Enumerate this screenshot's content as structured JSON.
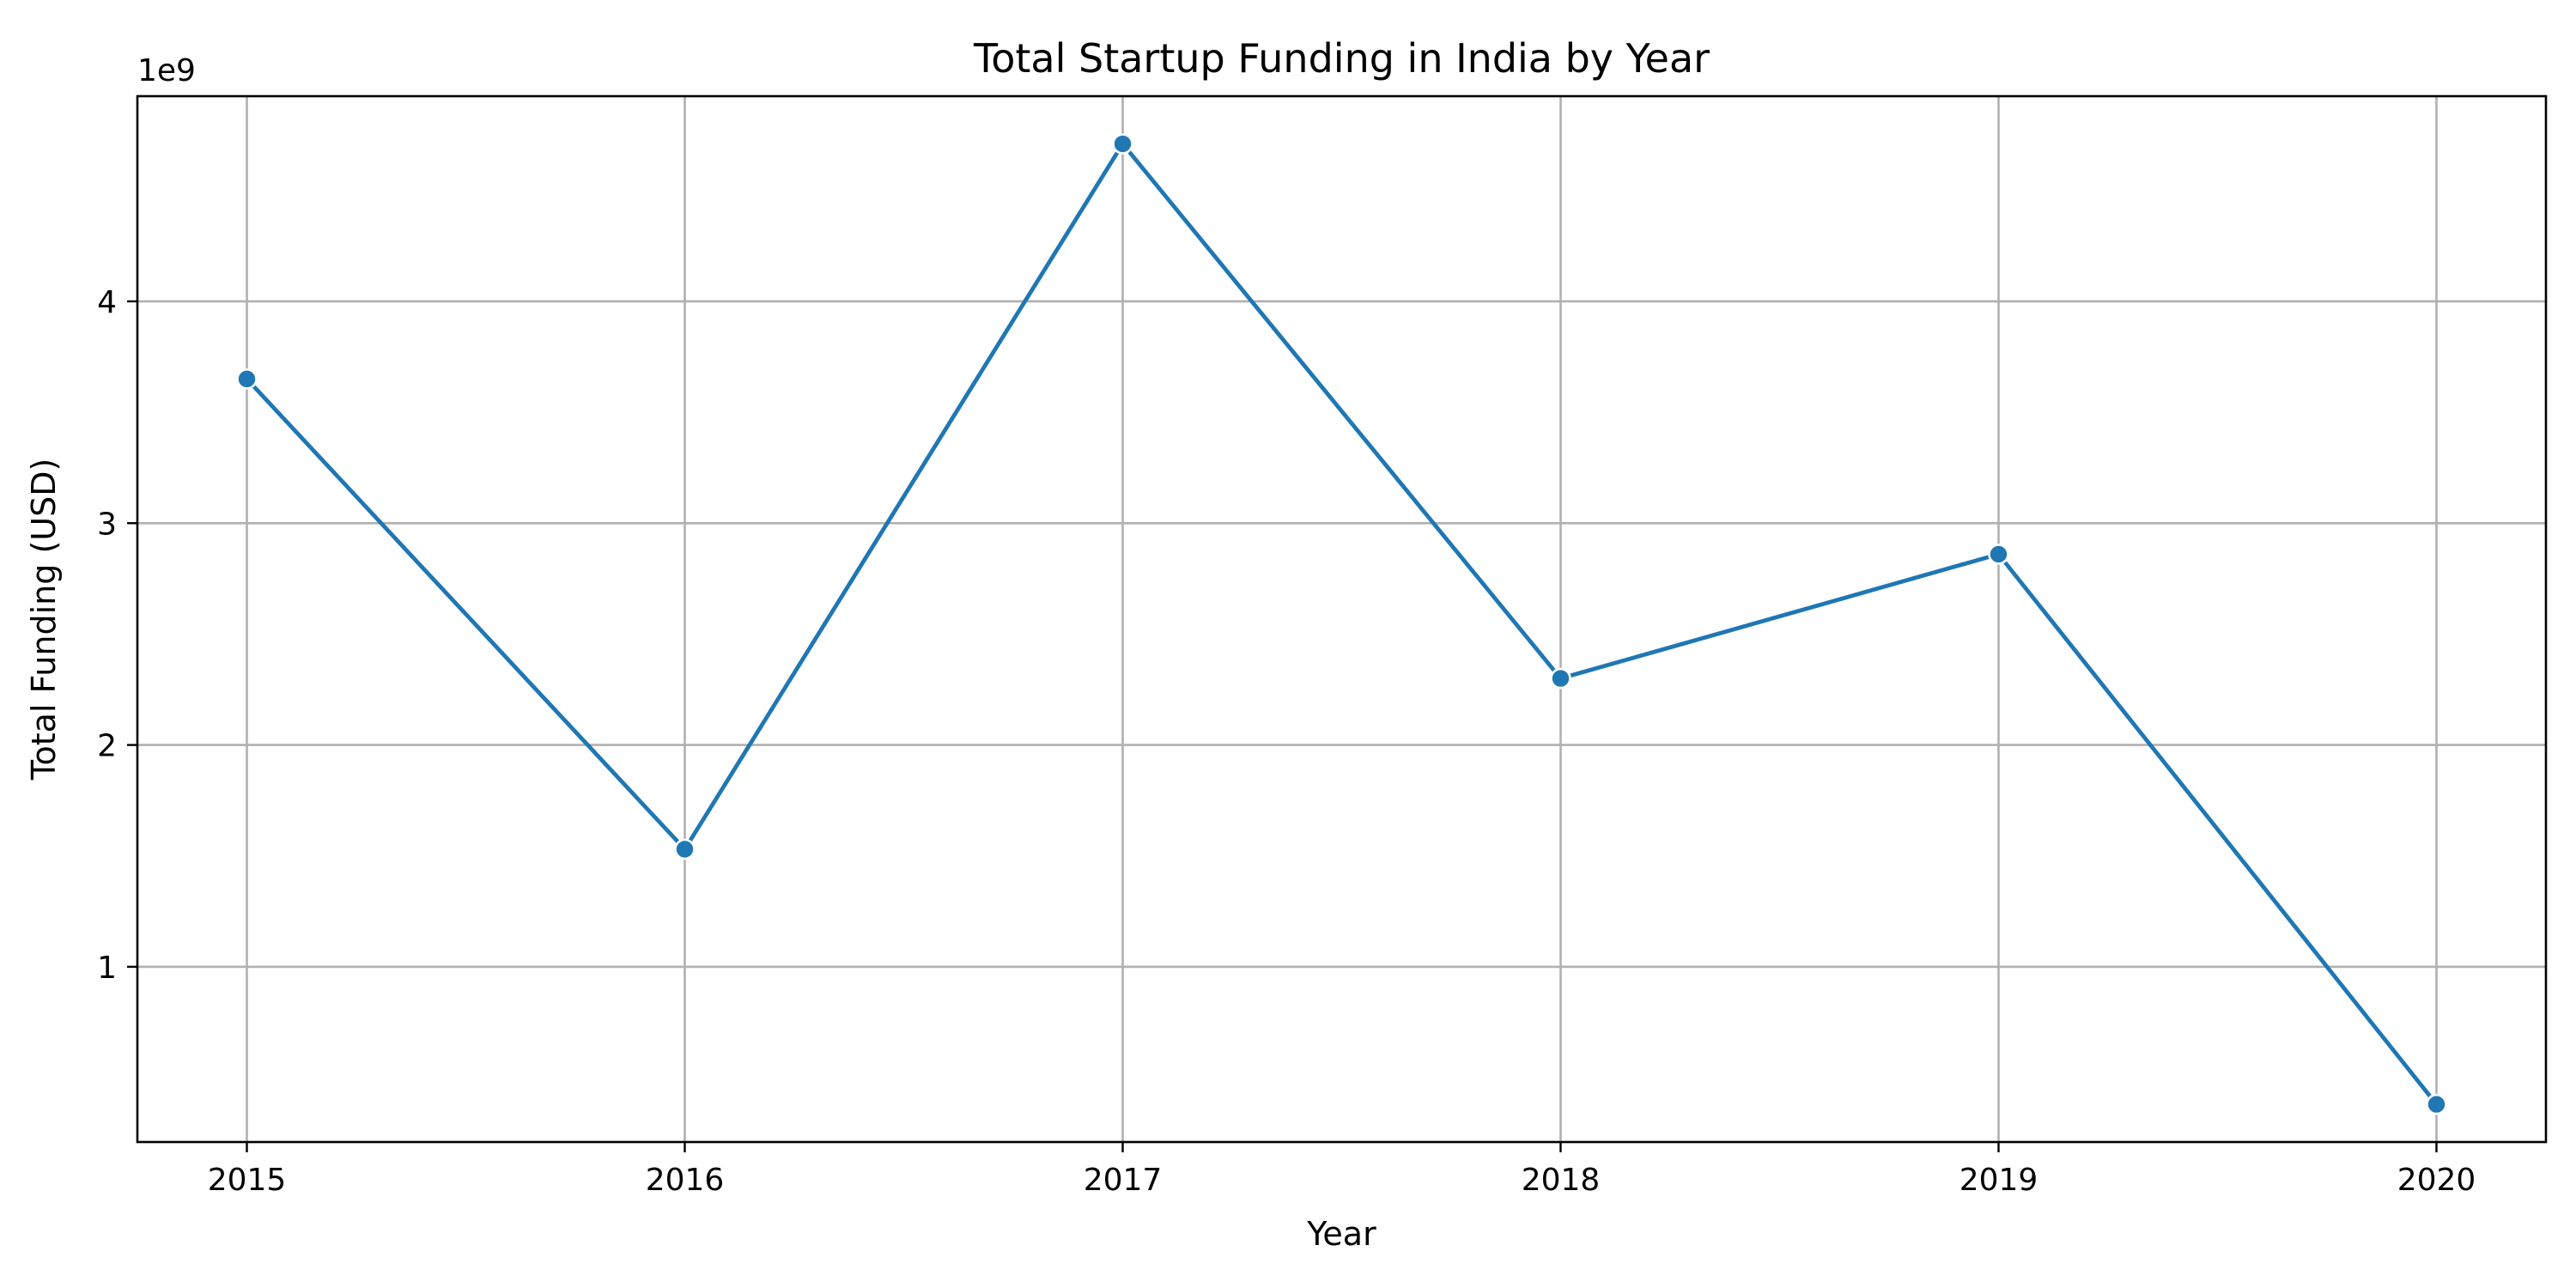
{
  "chart_data": {
    "type": "line",
    "title": "Total Startup Funding in India by Year",
    "xlabel": "Year",
    "ylabel": "Total Funding (USD)",
    "y_offset_label": "1e9",
    "x": [
      2015,
      2016,
      2017,
      2018,
      2019,
      2020
    ],
    "series": [
      {
        "color": "#1f77b4",
        "marker": "circle",
        "values": [
          3650000000,
          1530000000,
          4710000000,
          2300000000,
          2860000000,
          380000000
        ]
      }
    ],
    "xlim": [
      2014.75,
      2020.25
    ],
    "ylim": [
      210000000,
      4925000000
    ],
    "x_ticks": [
      {
        "value": 2015,
        "label": "2015"
      },
      {
        "value": 2016,
        "label": "2016"
      },
      {
        "value": 2017,
        "label": "2017"
      },
      {
        "value": 2018,
        "label": "2018"
      },
      {
        "value": 2019,
        "label": "2019"
      },
      {
        "value": 2020,
        "label": "2020"
      }
    ],
    "y_ticks": [
      {
        "value": 1000000000,
        "label": "1"
      },
      {
        "value": 2000000000,
        "label": "2"
      },
      {
        "value": 3000000000,
        "label": "3"
      },
      {
        "value": 4000000000,
        "label": "4"
      }
    ],
    "grid": true,
    "legend": "none"
  }
}
